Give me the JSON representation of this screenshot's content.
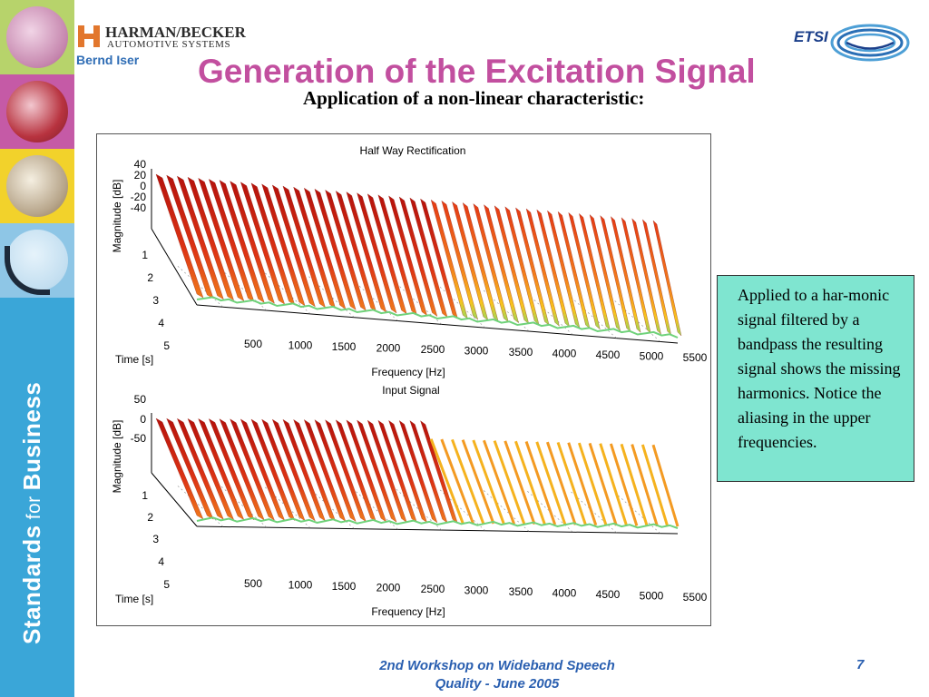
{
  "header": {
    "logo_name": "HARMAN/BECKER",
    "logo_sub": "AUTOMOTIVE SYSTEMS",
    "author": "Bernd Iser",
    "etsi_logo": "ETSI"
  },
  "sidebar": {
    "text_main": "Standards",
    "text_small": "for",
    "text_end": "Business"
  },
  "slide": {
    "title": "Generation of the Excitation Signal",
    "subtitle": "Application of a non-linear characteristic:"
  },
  "note": {
    "text": "Applied to a har-monic signal filtered by a bandpass the resulting signal shows the missing harmonics. Notice the aliasing in the upper frequencies."
  },
  "footer": {
    "line1": "2nd Workshop on Wideband Speech",
    "line2": "Quality - June 2005",
    "page": "7"
  },
  "chart_data": [
    {
      "type": "area",
      "title": "Half Way Rectification",
      "xlabel": "Frequency [Hz]",
      "ylabel": "Time [s]",
      "zlabel": "Magnitude [dB]",
      "x_ticks": [
        "500",
        "1000",
        "1500",
        "2000",
        "2500",
        "3000",
        "3500",
        "4000",
        "4500",
        "5000",
        "5500"
      ],
      "y_ticks": [
        "1",
        "2",
        "3",
        "4",
        "5"
      ],
      "z_ticks": [
        "40",
        "20",
        "0",
        "-20",
        "-40"
      ],
      "harmonics": 48,
      "cutoff_hz": null,
      "colors": [
        "#c4160e",
        "#e8401a",
        "#f58a1f",
        "#f7c61d",
        "#7fd35a"
      ]
    },
    {
      "type": "area",
      "title": "Input Signal",
      "xlabel": "Frequency [Hz]",
      "ylabel": "Time [s]",
      "zlabel": "Magnitude [dB]",
      "x_ticks": [
        "500",
        "1000",
        "1500",
        "2000",
        "2500",
        "3000",
        "3500",
        "4000",
        "4500",
        "5000",
        "5500"
      ],
      "y_ticks": [
        "1",
        "2",
        "3",
        "4",
        "5"
      ],
      "z_ticks": [
        "50",
        "0",
        "-50"
      ],
      "harmonics": 48,
      "cutoff_hz": 3000,
      "colors": [
        "#c4160e",
        "#e8401a",
        "#f58a1f",
        "#f7c61d",
        "#7fd35a"
      ]
    }
  ]
}
